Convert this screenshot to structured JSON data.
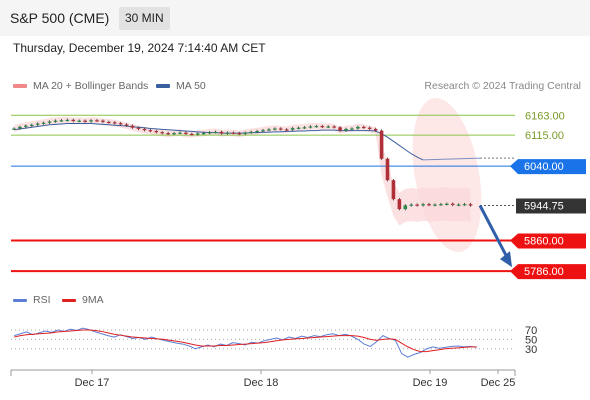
{
  "header": {
    "title": "S&P 500 (CME)",
    "timeframe": "30 MIN"
  },
  "datetime": "Thursday, December 19, 2024 7:14:40 AM CET",
  "legend": {
    "bollinger": {
      "label": "MA 20 + Bollinger Bands",
      "color": "#f08a8a"
    },
    "ma50": {
      "label": "MA 50",
      "color": "#3a5f9e"
    },
    "credit": "Research © 2024 Trading Central"
  },
  "rsi_legend": {
    "rsi": {
      "label": "RSI",
      "color": "#5b7fd6"
    },
    "ma9": {
      "label": "9MA",
      "color": "#e02020"
    }
  },
  "chart_data": {
    "type": "line",
    "price_range": [
      5750,
      6200
    ],
    "levels": [
      {
        "value": 6163.0,
        "label": "6163.00",
        "color": "#8bc34a",
        "style": "line-label"
      },
      {
        "value": 6115.0,
        "label": "6115.00",
        "color": "#8bc34a",
        "style": "line-label"
      },
      {
        "value": 6040.0,
        "label": "6040.00",
        "color": "#1a73e8",
        "style": "tag"
      },
      {
        "value": 5944.75,
        "label": "5944.75",
        "color": "#333333",
        "style": "tag-current"
      },
      {
        "value": 5860.0,
        "label": "5860.00",
        "color": "#ee1111",
        "style": "tag"
      },
      {
        "value": 5786.0,
        "label": "5786.00",
        "color": "#ee1111",
        "style": "tag"
      }
    ],
    "x_labels": [
      "Dec 17",
      "Dec 18",
      "Dec 19",
      "Dec 25"
    ],
    "x_label_positions_index": [
      10,
      40,
      68,
      85
    ],
    "candles_count": 85,
    "close": [
      6131,
      6135,
      6138,
      6140,
      6143,
      6145,
      6148,
      6150,
      6151,
      6152,
      6149,
      6150,
      6148,
      6151,
      6150,
      6147,
      6146,
      6144,
      6141,
      6138,
      6133,
      6130,
      6127,
      6125,
      6122,
      6120,
      6118,
      6120,
      6121,
      6118,
      6117,
      6119,
      6120,
      6122,
      6123,
      6119,
      6121,
      6120,
      6118,
      6121,
      6123,
      6125,
      6127,
      6129,
      6131,
      6129,
      6128,
      6132,
      6133,
      6134,
      6136,
      6137,
      6135,
      6136,
      6134,
      6126,
      6130,
      6131,
      6135,
      6133,
      6130,
      6126,
      6058,
      6006,
      5960,
      5936,
      5945,
      5947,
      5945,
      5948,
      5946,
      5947,
      5948,
      5949,
      5946,
      5947,
      5948,
      5944.75
    ],
    "ma50": [
      6128,
      6130,
      6132,
      6134,
      6136,
      6138,
      6140,
      6141,
      6142,
      6143,
      6143,
      6143,
      6143,
      6143,
      6142,
      6141,
      6140,
      6139,
      6138,
      6137,
      6135,
      6134,
      6133,
      6131,
      6130,
      6129,
      6128,
      6127,
      6126,
      6125,
      6124,
      6123,
      6122,
      6121,
      6121,
      6120,
      6120,
      6120,
      6120,
      6120,
      6121,
      6121,
      6122,
      6122,
      6123,
      6123,
      6124,
      6124,
      6125,
      6125,
      6126,
      6126,
      6127,
      6127,
      6127,
      6126,
      6126,
      6126,
      6126,
      6126,
      6126,
      6125,
      6118,
      6110,
      6100,
      6090,
      6080,
      6070,
      6062,
      6055
    ],
    "rsi": {
      "levels": [
        70,
        50,
        30
      ],
      "range": [
        0,
        100
      ],
      "rsi": [
        58,
        62,
        66,
        60,
        64,
        68,
        65,
        70,
        67,
        72,
        69,
        74,
        71,
        66,
        62,
        58,
        55,
        60,
        56,
        52,
        54,
        50,
        55,
        51,
        48,
        45,
        42,
        40,
        36,
        30,
        34,
        38,
        34,
        40,
        37,
        43,
        41,
        38,
        44,
        42,
        47,
        50,
        53,
        49,
        55,
        52,
        57,
        54,
        58,
        56,
        60,
        62,
        58,
        61,
        57,
        50,
        40,
        35,
        45,
        58,
        52,
        48,
        20,
        12,
        18,
        22,
        30,
        34,
        31,
        33,
        35,
        36,
        34,
        35,
        33
      ],
      "ma9": [
        55,
        58,
        60,
        61,
        62,
        63,
        64,
        66,
        67,
        68,
        69,
        70,
        70,
        69,
        67,
        64,
        61,
        59,
        57,
        55,
        54,
        53,
        52,
        51,
        50,
        48,
        46,
        44,
        41,
        38,
        36,
        36,
        36,
        37,
        37,
        38,
        39,
        40,
        41,
        42,
        43,
        45,
        47,
        49,
        50,
        51,
        52,
        53,
        54,
        55,
        56,
        57,
        58,
        58,
        58,
        57,
        54,
        50,
        48,
        50,
        51,
        50,
        42,
        34,
        28,
        24,
        24,
        26,
        28,
        30,
        31,
        32,
        33,
        34,
        34
      ]
    }
  }
}
